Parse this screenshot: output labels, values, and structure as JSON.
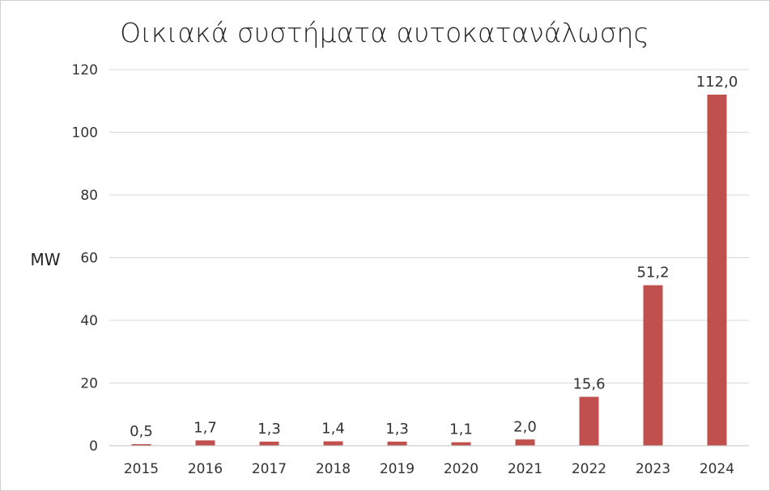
{
  "chart_data": {
    "type": "bar",
    "title": "Οικιακά συστήματα αυτοκατανάλωσης",
    "xlabel": "",
    "ylabel": "MW",
    "ylim": [
      0,
      120
    ],
    "yticks": [
      0,
      20,
      40,
      60,
      80,
      100,
      120
    ],
    "categories": [
      "2015",
      "2016",
      "2017",
      "2018",
      "2019",
      "2020",
      "2021",
      "2022",
      "2023",
      "2024"
    ],
    "values": [
      0.5,
      1.7,
      1.3,
      1.4,
      1.3,
      1.1,
      2.0,
      15.6,
      51.2,
      112.0
    ],
    "data_labels": [
      "0,5",
      "1,7",
      "1,3",
      "1,4",
      "1,3",
      "1,1",
      "2,0",
      "15,6",
      "51,2",
      "112,0"
    ],
    "bar_color": "#c0504d",
    "grid": true,
    "legend": "none"
  }
}
